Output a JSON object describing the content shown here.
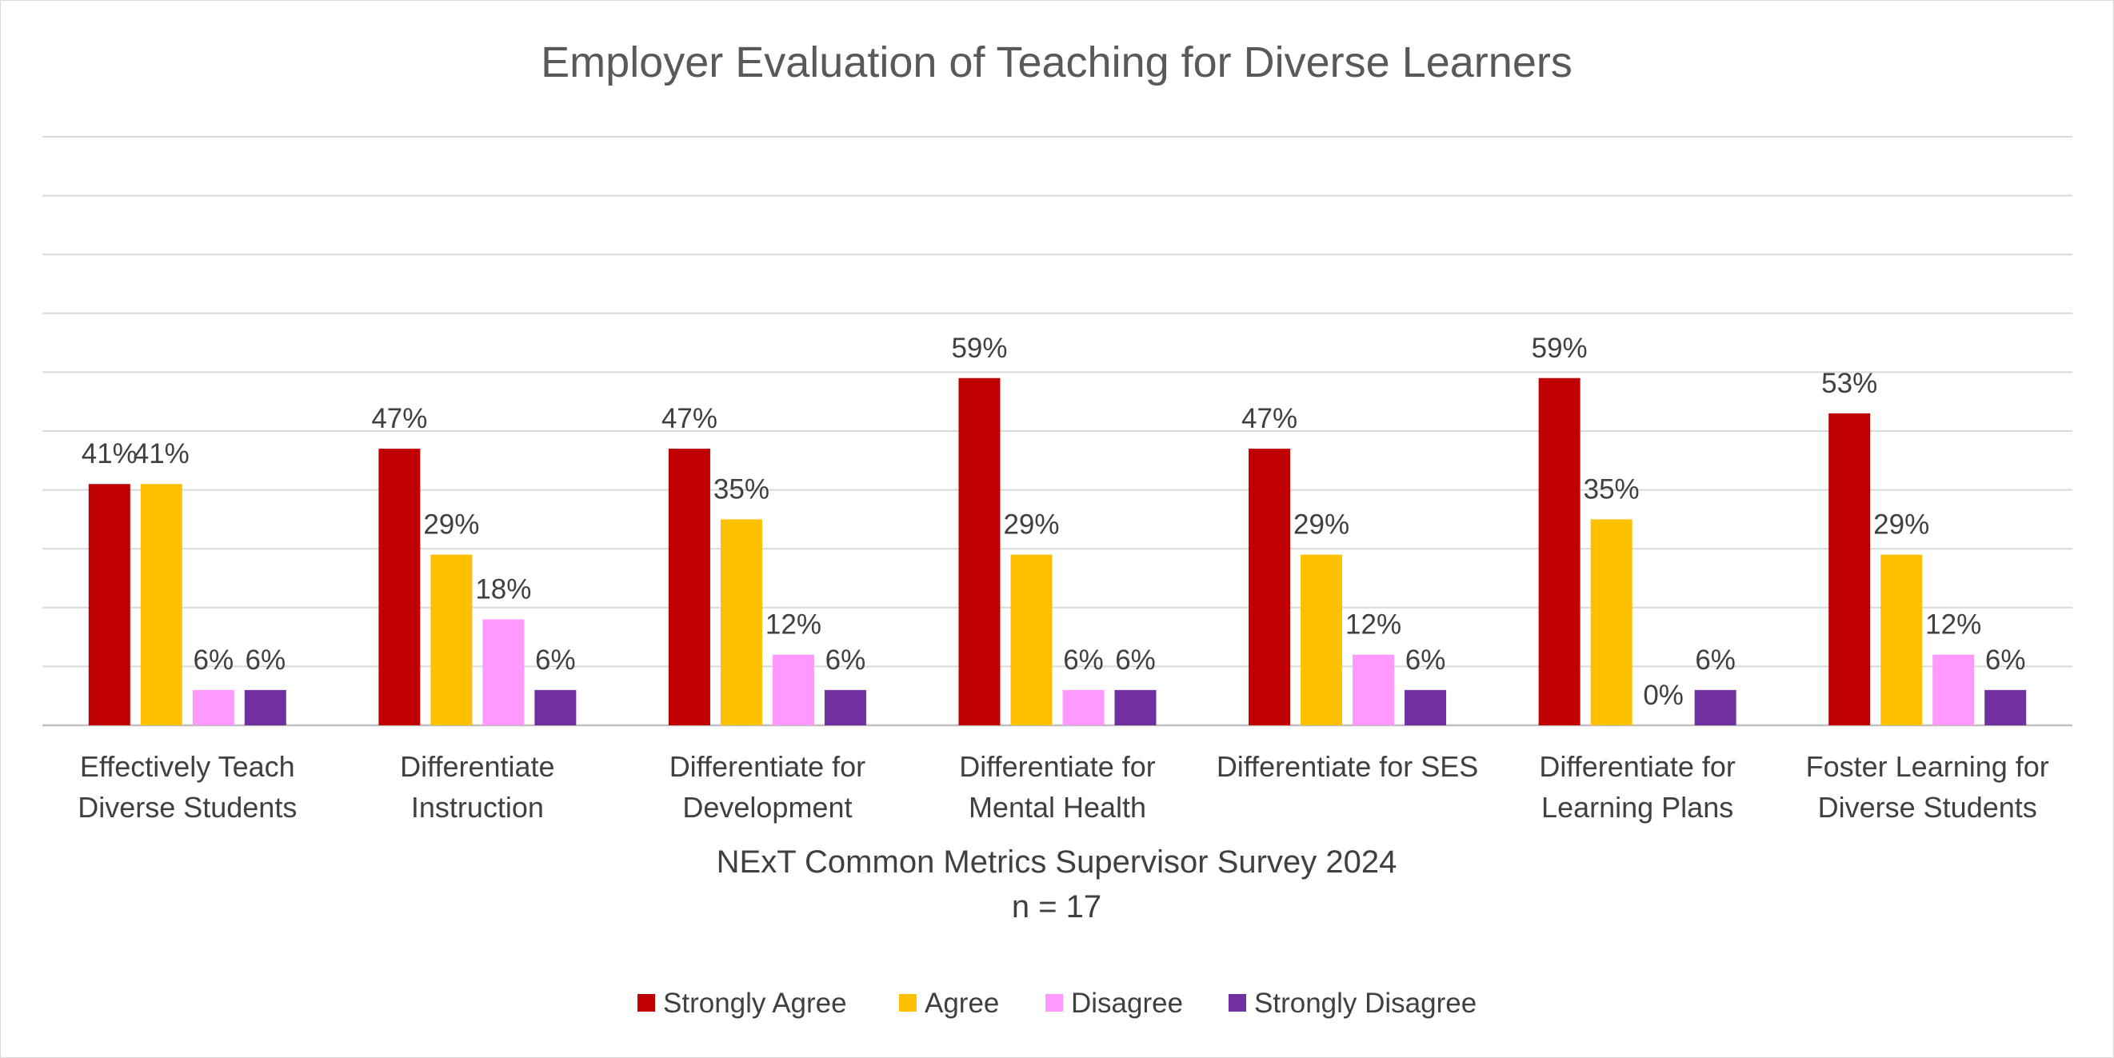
{
  "chart_data": {
    "type": "bar",
    "title": "Employer Evaluation of Teaching for Diverse Learners",
    "xlabel": "NExT Common Metrics Supervisor Survey 2024",
    "xlabel_sub": "n = 17",
    "ylabel": "",
    "ylim": [
      0,
      1.0
    ],
    "grid": true,
    "legend_position": "bottom",
    "categories": [
      [
        "Effectively Teach",
        "Diverse Students"
      ],
      [
        "Differentiate",
        "Instruction"
      ],
      [
        "Differentiate for",
        "Development"
      ],
      [
        "Differentiate for",
        "Mental Health"
      ],
      [
        "Differentiate for SES"
      ],
      [
        "Differentiate for",
        "Learning Plans"
      ],
      [
        "Foster Learning for",
        "Diverse Students"
      ]
    ],
    "series": [
      {
        "name": "Strongly Agree",
        "color": "#c00000",
        "values": [
          0.41,
          0.47,
          0.47,
          0.59,
          0.47,
          0.59,
          0.53
        ],
        "labels": [
          "41%",
          "47%",
          "47%",
          "59%",
          "47%",
          "59%",
          "53%"
        ]
      },
      {
        "name": "Agree",
        "color": "#ffc000",
        "values": [
          0.41,
          0.29,
          0.35,
          0.29,
          0.29,
          0.35,
          0.29
        ],
        "labels": [
          "41%",
          "29%",
          "35%",
          "29%",
          "29%",
          "35%",
          "29%"
        ]
      },
      {
        "name": "Disagree",
        "color": "#ff99ff",
        "values": [
          0.06,
          0.18,
          0.12,
          0.06,
          0.12,
          0.0,
          0.12
        ],
        "labels": [
          "6%",
          "18%",
          "12%",
          "6%",
          "12%",
          "0%",
          "12%"
        ]
      },
      {
        "name": "Strongly Disagree",
        "color": "#7030a0",
        "values": [
          0.06,
          0.06,
          0.06,
          0.06,
          0.06,
          0.06,
          0.06
        ],
        "labels": [
          "6%",
          "6%",
          "6%",
          "6%",
          "6%",
          "6%",
          "6%"
        ]
      }
    ]
  }
}
